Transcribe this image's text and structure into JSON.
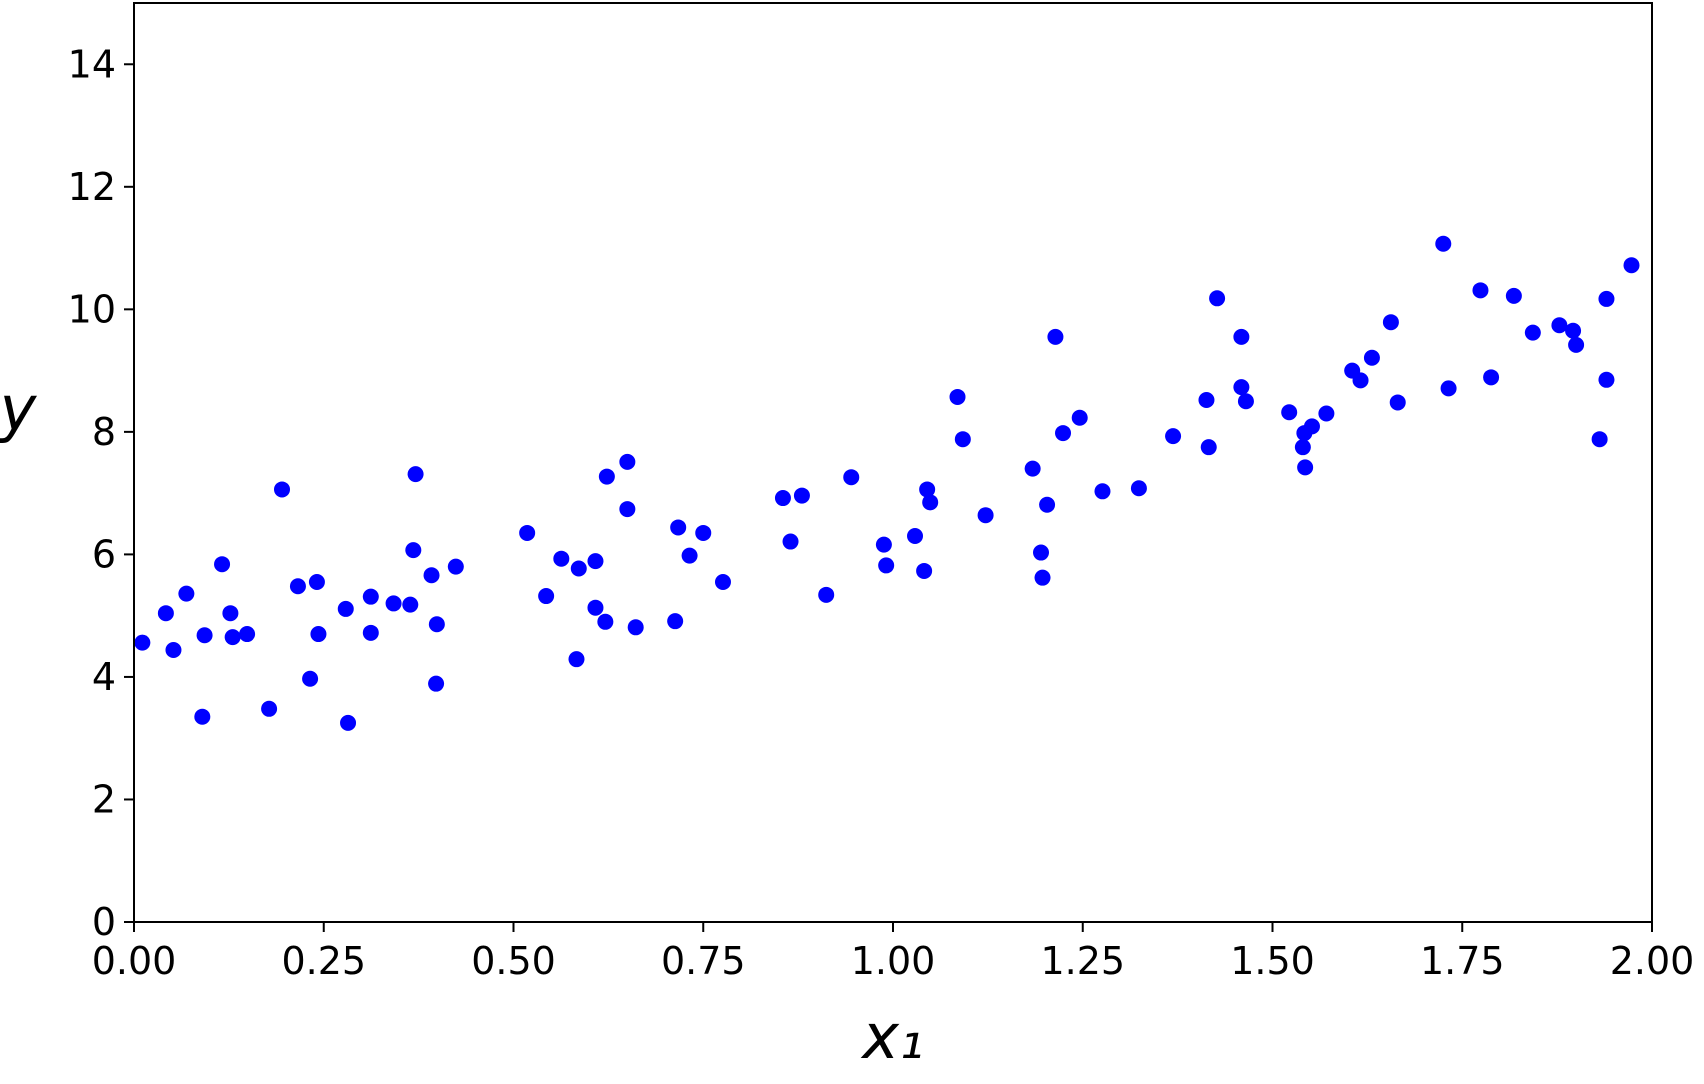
{
  "chart_data": {
    "type": "scatter",
    "x_label": "x₁",
    "y_label": "y",
    "color": "#0000ff",
    "xlim": [
      0,
      2
    ],
    "ylim": [
      0,
      15
    ],
    "xticks": [
      {
        "value": 0,
        "label": "0.00"
      },
      {
        "value": 0.25,
        "label": "0.25"
      },
      {
        "value": 0.5,
        "label": "0.50"
      },
      {
        "value": 0.75,
        "label": "0.75"
      },
      {
        "value": 1,
        "label": "1.00"
      },
      {
        "value": 1.25,
        "label": "1.25"
      },
      {
        "value": 1.5,
        "label": "1.50"
      },
      {
        "value": 1.75,
        "label": "1.75"
      },
      {
        "value": 2,
        "label": "2.00"
      }
    ],
    "yticks": [
      0,
      2,
      4,
      6,
      8,
      10,
      12,
      14
    ],
    "x": [
      0.011,
      0.042,
      0.052,
      0.069,
      0.093,
      0.09,
      0.116,
      0.127,
      0.13,
      0.149,
      0.178,
      0.195,
      0.216,
      0.232,
      0.241,
      0.243,
      0.279,
      0.282,
      0.312,
      0.312,
      0.342,
      0.364,
      0.368,
      0.371,
      0.392,
      0.399,
      0.398,
      0.424,
      0.518,
      0.543,
      0.563,
      0.586,
      0.583,
      0.608,
      0.608,
      0.621,
      0.623,
      0.65,
      0.65,
      0.661,
      0.713,
      0.717,
      0.732,
      0.75,
      0.776,
      0.855,
      0.865,
      0.88,
      0.912,
      0.945,
      0.988,
      0.991,
      1.029,
      1.041,
      1.045,
      1.049,
      1.085,
      1.092,
      1.122,
      1.184,
      1.195,
      1.197,
      1.203,
      1.214,
      1.224,
      1.246,
      1.276,
      1.324,
      1.369,
      1.413,
      1.416,
      1.427,
      1.459,
      1.459,
      1.465,
      1.522,
      1.54,
      1.542,
      1.543,
      1.552,
      1.571,
      1.605,
      1.616,
      1.631,
      1.656,
      1.665,
      1.725,
      1.732,
      1.774,
      1.788,
      1.818,
      1.843,
      1.878,
      1.896,
      1.9,
      1.931,
      1.94,
      1.94,
      1.973
    ],
    "values": [
      4.56,
      5.04,
      4.44,
      5.36,
      4.68,
      3.35,
      5.84,
      5.04,
      4.65,
      4.7,
      3.48,
      7.06,
      5.48,
      3.97,
      5.55,
      4.7,
      5.11,
      3.25,
      5.31,
      4.72,
      5.2,
      5.18,
      6.07,
      7.31,
      5.66,
      4.86,
      3.89,
      5.8,
      6.35,
      5.32,
      5.93,
      5.77,
      4.29,
      5.89,
      5.13,
      4.9,
      7.27,
      7.51,
      6.74,
      4.81,
      4.91,
      6.44,
      5.98,
      6.35,
      5.55,
      6.92,
      6.21,
      6.96,
      5.34,
      7.26,
      6.16,
      5.82,
      6.3,
      5.73,
      7.06,
      6.85,
      8.57,
      7.88,
      6.64,
      7.4,
      6.03,
      5.62,
      6.81,
      9.55,
      7.98,
      8.23,
      7.03,
      7.08,
      7.93,
      8.52,
      7.75,
      10.18,
      8.73,
      9.55,
      8.5,
      8.32,
      7.75,
      7.98,
      7.42,
      8.09,
      8.3,
      9.0,
      8.84,
      9.21,
      9.79,
      8.48,
      11.07,
      8.71,
      10.31,
      8.89,
      10.22,
      9.62,
      9.74,
      9.65,
      9.42,
      7.88,
      10.17,
      8.85,
      10.72
    ]
  }
}
